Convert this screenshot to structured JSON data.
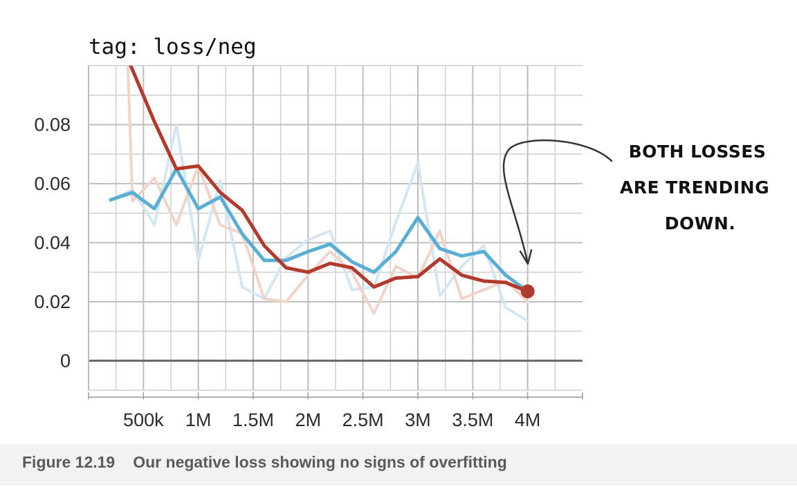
{
  "tag_title": "tag: loss/neg",
  "annotation": [
    "BOTH LOSSES",
    "ARE TRENDING",
    "DOWN."
  ],
  "caption": {
    "number": "Figure 12.19",
    "text": "Our negative loss showing no signs of overfitting"
  },
  "colors": {
    "blue": "#5aaed6",
    "blue_raw": "#d3e6f2",
    "red": "#b23a2c",
    "red_raw": "#f1d3ca",
    "grid": "#cfcfcf",
    "axis": "#777777"
  },
  "chart_data": {
    "type": "line",
    "title": "tag: loss/neg",
    "xlim": [
      0,
      4500000
    ],
    "ylim": [
      -0.01,
      0.1
    ],
    "grid": true,
    "x_ticks": [
      {
        "value": 500000,
        "label": "500k"
      },
      {
        "value": 1000000,
        "label": "1M"
      },
      {
        "value": 1500000,
        "label": "1.5M"
      },
      {
        "value": 2000000,
        "label": "2M"
      },
      {
        "value": 2500000,
        "label": "2.5M"
      },
      {
        "value": 3000000,
        "label": "3M"
      },
      {
        "value": 3500000,
        "label": "3.5M"
      },
      {
        "value": 4000000,
        "label": "4M"
      }
    ],
    "y_ticks": [
      {
        "value": 0,
        "label": "0"
      },
      {
        "value": 0.02,
        "label": "0.02"
      },
      {
        "value": 0.04,
        "label": "0.04"
      },
      {
        "value": 0.06,
        "label": "0.06"
      },
      {
        "value": 0.08,
        "label": "0.08"
      }
    ],
    "series": [
      {
        "color": "#d3e6f2",
        "style": "raw",
        "points": [
          [
            200000,
            0.0545
          ],
          [
            400000,
            0.058
          ],
          [
            600000,
            0.046
          ],
          [
            800000,
            0.08
          ],
          [
            1000000,
            0.034
          ],
          [
            1200000,
            0.061
          ],
          [
            1400000,
            0.025
          ],
          [
            1600000,
            0.021
          ],
          [
            1800000,
            0.035
          ],
          [
            2000000,
            0.041
          ],
          [
            2200000,
            0.044
          ],
          [
            2400000,
            0.024
          ],
          [
            2600000,
            0.025
          ],
          [
            2800000,
            0.047
          ],
          [
            3000000,
            0.067
          ],
          [
            3200000,
            0.022
          ],
          [
            3400000,
            0.032
          ],
          [
            3600000,
            0.039
          ],
          [
            3800000,
            0.018
          ],
          [
            4000000,
            0.0135
          ]
        ]
      },
      {
        "color": "#f1d3ca",
        "style": "raw",
        "points": [
          [
            350000,
            0.11
          ],
          [
            400000,
            0.054
          ],
          [
            600000,
            0.062
          ],
          [
            800000,
            0.046
          ],
          [
            1000000,
            0.066
          ],
          [
            1200000,
            0.046
          ],
          [
            1400000,
            0.043
          ],
          [
            1600000,
            0.021
          ],
          [
            1800000,
            0.02
          ],
          [
            2000000,
            0.029
          ],
          [
            2200000,
            0.037
          ],
          [
            2400000,
            0.03
          ],
          [
            2600000,
            0.016
          ],
          [
            2800000,
            0.032
          ],
          [
            3000000,
            0.028
          ],
          [
            3200000,
            0.044
          ],
          [
            3400000,
            0.021
          ],
          [
            3600000,
            0.024
          ],
          [
            3800000,
            0.027
          ],
          [
            4000000,
            0.02
          ]
        ]
      },
      {
        "color": "#5aaed6",
        "style": "smoothed",
        "points": [
          [
            200000,
            0.0545
          ],
          [
            400000,
            0.057
          ],
          [
            600000,
            0.0515
          ],
          [
            800000,
            0.065
          ],
          [
            1000000,
            0.0515
          ],
          [
            1200000,
            0.0555
          ],
          [
            1400000,
            0.043
          ],
          [
            1600000,
            0.034
          ],
          [
            1800000,
            0.034
          ],
          [
            2000000,
            0.037
          ],
          [
            2200000,
            0.0395
          ],
          [
            2400000,
            0.0335
          ],
          [
            2600000,
            0.03
          ],
          [
            2800000,
            0.037
          ],
          [
            3000000,
            0.0485
          ],
          [
            3200000,
            0.038
          ],
          [
            3400000,
            0.0355
          ],
          [
            3600000,
            0.037
          ],
          [
            3800000,
            0.029
          ],
          [
            4000000,
            0.0235
          ]
        ]
      },
      {
        "color": "#b23a2c",
        "style": "smoothed",
        "points": [
          [
            350000,
            0.103
          ],
          [
            600000,
            0.081
          ],
          [
            800000,
            0.065
          ],
          [
            1000000,
            0.066
          ],
          [
            1200000,
            0.057
          ],
          [
            1400000,
            0.051
          ],
          [
            1600000,
            0.039
          ],
          [
            1800000,
            0.0315
          ],
          [
            2000000,
            0.03
          ],
          [
            2200000,
            0.033
          ],
          [
            2400000,
            0.0315
          ],
          [
            2600000,
            0.025
          ],
          [
            2800000,
            0.028
          ],
          [
            3000000,
            0.0285
          ],
          [
            3200000,
            0.0345
          ],
          [
            3400000,
            0.029
          ],
          [
            3600000,
            0.027
          ],
          [
            3800000,
            0.0265
          ],
          [
            4000000,
            0.0235
          ]
        ]
      }
    ],
    "highlight_point": [
      4000000,
      0.0235
    ]
  }
}
